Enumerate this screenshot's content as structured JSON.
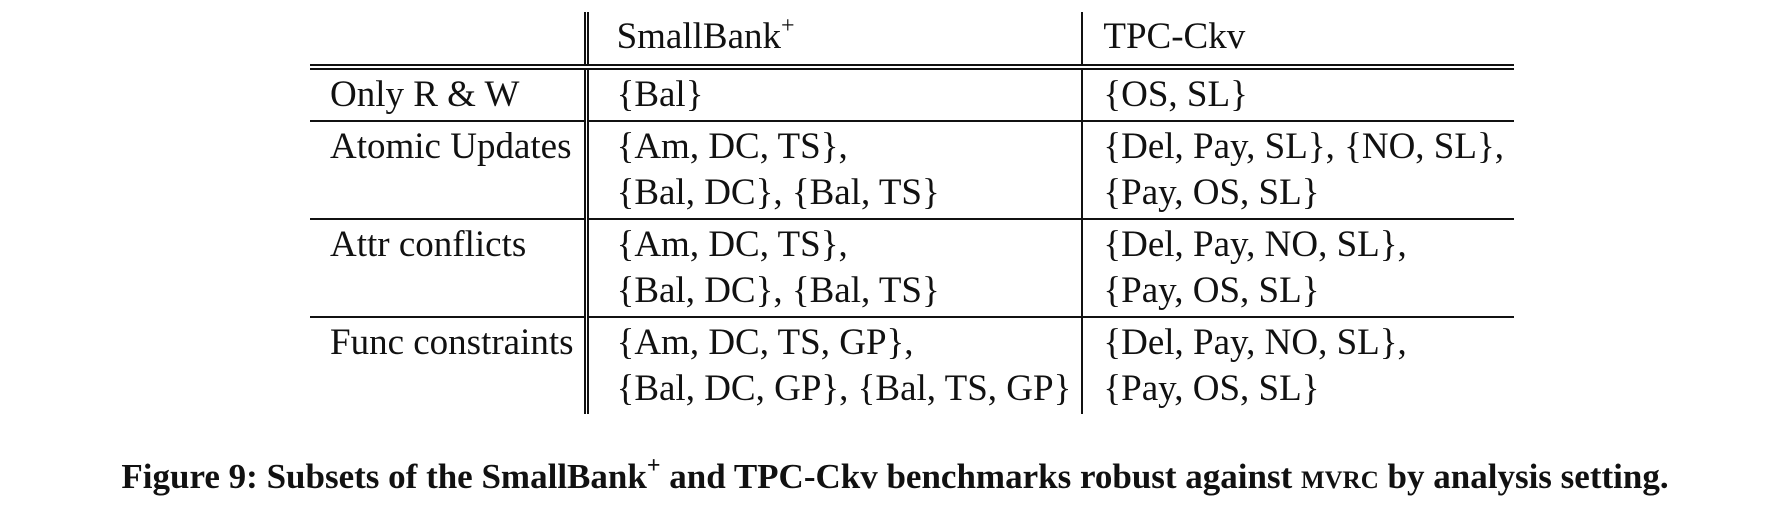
{
  "table": {
    "header": {
      "col_setting": "",
      "col_smallbank": "SmallBank",
      "col_smallbank_sup": "+",
      "col_tpc": "TPC-Ckv"
    },
    "rows": [
      {
        "setting": "Only R & W",
        "smallbank": [
          "{Bal}"
        ],
        "tpc": [
          "{OS, SL}"
        ]
      },
      {
        "setting": "Atomic Updates",
        "smallbank": [
          "{Am, DC, TS},",
          "{Bal, DC}, {Bal, TS}"
        ],
        "tpc": [
          "{Del, Pay, SL}, {NO, SL},",
          "{Pay, OS, SL}"
        ]
      },
      {
        "setting": "Attr conflicts",
        "smallbank": [
          "{Am, DC, TS},",
          "{Bal, DC}, {Bal, TS}"
        ],
        "tpc": [
          "{Del, Pay, NO, SL},",
          "{Pay, OS, SL}"
        ]
      },
      {
        "setting": "Func constraints",
        "smallbank": [
          "{Am, DC, TS, GP},",
          "{Bal, DC, GP}, {Bal, TS, GP}"
        ],
        "tpc": [
          "{Del, Pay, NO, SL},",
          "{Pay, OS, SL}"
        ]
      }
    ]
  },
  "caption": {
    "part1": "Figure 9: Subsets of the SmallBank",
    "sup": "+",
    "part2": " and TPC-Ckv benchmarks robust against ",
    "smallcaps": "mvrc",
    "part3": " by analysis setting."
  }
}
